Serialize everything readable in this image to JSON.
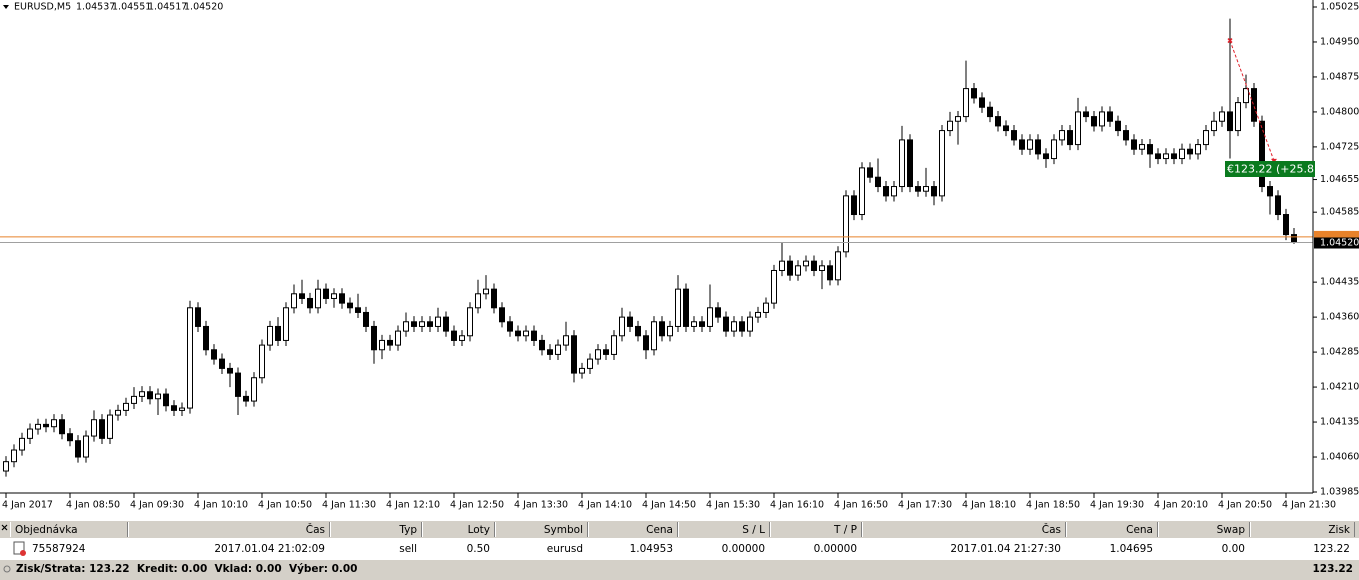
{
  "chart_data": {
    "type": "candlestick",
    "symbol": "EURUSD,M5",
    "last_bar_labels": [
      "1.04537",
      "1.04551",
      "1.04517",
      "1.04520"
    ],
    "ylim": [
      1.03985,
      1.0504
    ],
    "yticks": [
      1.05025,
      {
        "value": 1.0495,
        "label": "1.04950"
      },
      1.04875,
      {
        "value": 1.048,
        "label": "1.04800"
      },
      1.04725,
      1.04655,
      1.04585,
      1.04435,
      {
        "value": 1.0436,
        "label": "1.04360"
      },
      1.04285,
      {
        "value": 1.0421,
        "label": "1.04210"
      },
      1.04135,
      {
        "value": 1.0406,
        "label": "1.04060"
      },
      1.03985
    ],
    "categories": [
      "4 Jan 2017",
      null,
      null,
      null,
      null,
      null,
      null,
      null,
      "4 Jan 08:50",
      null,
      null,
      null,
      null,
      null,
      null,
      null,
      "4 Jan 09:30",
      null,
      null,
      null,
      null,
      null,
      null,
      null,
      "4 Jan 10:10",
      null,
      null,
      null,
      null,
      null,
      null,
      null,
      "4 Jan 10:50",
      null,
      null,
      null,
      null,
      null,
      null,
      null,
      "4 Jan 11:30",
      null,
      null,
      null,
      null,
      null,
      null,
      null,
      "4 Jan 12:10",
      null,
      null,
      null,
      null,
      null,
      null,
      null,
      "4 Jan 12:50",
      null,
      null,
      null,
      null,
      null,
      null,
      null,
      "4 Jan 13:30",
      null,
      null,
      null,
      null,
      null,
      null,
      null,
      "4 Jan 14:10",
      null,
      null,
      null,
      null,
      null,
      null,
      null,
      "4 Jan 14:50",
      null,
      null,
      null,
      null,
      null,
      null,
      null,
      "4 Jan 15:30",
      null,
      null,
      null,
      null,
      null,
      null,
      null,
      "4 Jan 16:10",
      null,
      null,
      null,
      null,
      null,
      null,
      null,
      "4 Jan 16:50",
      null,
      null,
      null,
      null,
      null,
      null,
      null,
      "4 Jan 17:30",
      null,
      null,
      null,
      null,
      null,
      null,
      null,
      "4 Jan 18:10",
      null,
      null,
      null,
      null,
      null,
      null,
      null,
      "4 Jan 18:50",
      null,
      null,
      null,
      null,
      null,
      null,
      null,
      "4 Jan 19:30",
      null,
      null,
      null,
      null,
      null,
      null,
      null,
      "4 Jan 20:10",
      null,
      null,
      null,
      null,
      null,
      null,
      null,
      "4 Jan 20:50",
      null,
      null,
      null,
      null,
      null,
      null,
      null,
      "4 Jan 21:30",
      null
    ],
    "candles": [
      [
        1.0403,
        1.04062,
        1.04018,
        1.0405
      ],
      [
        1.0405,
        1.04087,
        1.04038,
        1.04075
      ],
      [
        1.04075,
        1.04112,
        1.04063,
        1.041
      ],
      [
        1.041,
        1.04132,
        1.04088,
        1.0412
      ],
      [
        1.0412,
        1.04142,
        1.04108,
        1.0413
      ],
      [
        1.0413,
        1.04142,
        1.04113,
        1.04125
      ],
      [
        1.04125,
        1.04152,
        1.04113,
        1.0414
      ],
      [
        1.0414,
        1.04152,
        1.04098,
        1.0411
      ],
      [
        1.0411,
        1.04122,
        1.04083,
        1.04095
      ],
      [
        1.04095,
        1.04107,
        1.04048,
        1.0406
      ],
      [
        1.0406,
        1.04117,
        1.04048,
        1.04105
      ],
      [
        1.04105,
        1.0416,
        1.04093,
        1.0414
      ],
      [
        1.0414,
        1.04152,
        1.04088,
        1.041
      ],
      [
        1.041,
        1.04162,
        1.04088,
        1.0415
      ],
      [
        1.0415,
        1.04172,
        1.04138,
        1.0416
      ],
      [
        1.0416,
        1.04187,
        1.04148,
        1.04175
      ],
      [
        1.04175,
        1.0421,
        1.04163,
        1.0419
      ],
      [
        1.0419,
        1.04212,
        1.04178,
        1.042
      ],
      [
        1.042,
        1.04212,
        1.04173,
        1.04185
      ],
      [
        1.04185,
        1.04207,
        1.0415,
        1.04195
      ],
      [
        1.04195,
        1.04207,
        1.04158,
        1.0417
      ],
      [
        1.0417,
        1.04182,
        1.04148,
        1.0416
      ],
      [
        1.0416,
        1.04177,
        1.04148,
        1.04165
      ],
      [
        1.04165,
        1.04395,
        1.04153,
        1.0438
      ],
      [
        1.0438,
        1.04392,
        1.04328,
        1.0434
      ],
      [
        1.0434,
        1.04352,
        1.04278,
        1.0429
      ],
      [
        1.0429,
        1.04302,
        1.04258,
        1.0427
      ],
      [
        1.0427,
        1.04282,
        1.04238,
        1.0425
      ],
      [
        1.0425,
        1.04262,
        1.0421,
        1.0424
      ],
      [
        1.0424,
        1.04252,
        1.0415,
        1.0419
      ],
      [
        1.0419,
        1.04202,
        1.04168,
        1.0418
      ],
      [
        1.0418,
        1.04242,
        1.04168,
        1.0423
      ],
      [
        1.0423,
        1.04312,
        1.04218,
        1.043
      ],
      [
        1.043,
        1.04352,
        1.04288,
        1.0434
      ],
      [
        1.0434,
        1.0436,
        1.04298,
        1.0431
      ],
      [
        1.0431,
        1.04392,
        1.04298,
        1.0438
      ],
      [
        1.0438,
        1.0443,
        1.04368,
        1.0441
      ],
      [
        1.0441,
        1.0444,
        1.04388,
        1.044
      ],
      [
        1.044,
        1.04412,
        1.04368,
        1.0438
      ],
      [
        1.0438,
        1.0444,
        1.04368,
        1.0442
      ],
      [
        1.0442,
        1.04432,
        1.04388,
        1.044
      ],
      [
        1.044,
        1.04422,
        1.0438,
        1.0441
      ],
      [
        1.0441,
        1.04422,
        1.04378,
        1.0439
      ],
      [
        1.0439,
        1.04402,
        1.04368,
        1.0438
      ],
      [
        1.0438,
        1.0441,
        1.04358,
        1.0437
      ],
      [
        1.0437,
        1.04382,
        1.04328,
        1.0434
      ],
      [
        1.0434,
        1.04352,
        1.0426,
        1.0429
      ],
      [
        1.0429,
        1.04322,
        1.0427,
        1.0431
      ],
      [
        1.0431,
        1.04322,
        1.04288,
        1.043
      ],
      [
        1.043,
        1.04342,
        1.04288,
        1.0433
      ],
      [
        1.0433,
        1.0437,
        1.04318,
        1.0435
      ],
      [
        1.0435,
        1.04362,
        1.04328,
        1.0434
      ],
      [
        1.0434,
        1.04362,
        1.04328,
        1.0435
      ],
      [
        1.0435,
        1.04362,
        1.04328,
        1.0434
      ],
      [
        1.0434,
        1.0438,
        1.04328,
        1.0436
      ],
      [
        1.0436,
        1.04372,
        1.04318,
        1.0433
      ],
      [
        1.0433,
        1.04342,
        1.04298,
        1.0431
      ],
      [
        1.0431,
        1.04332,
        1.04298,
        1.0432
      ],
      [
        1.0432,
        1.04392,
        1.04308,
        1.0438
      ],
      [
        1.0438,
        1.0444,
        1.04368,
        1.0441
      ],
      [
        1.0441,
        1.0445,
        1.04398,
        1.0442
      ],
      [
        1.0442,
        1.04432,
        1.04368,
        1.0438
      ],
      [
        1.0438,
        1.04392,
        1.04338,
        1.0435
      ],
      [
        1.0435,
        1.04362,
        1.04318,
        1.0433
      ],
      [
        1.0433,
        1.04342,
        1.04308,
        1.0432
      ],
      [
        1.0432,
        1.04342,
        1.04308,
        1.0433
      ],
      [
        1.0433,
        1.04342,
        1.04298,
        1.0431
      ],
      [
        1.0431,
        1.04322,
        1.04278,
        1.0429
      ],
      [
        1.0429,
        1.04302,
        1.04268,
        1.0428
      ],
      [
        1.0428,
        1.04312,
        1.04268,
        1.043
      ],
      [
        1.043,
        1.0435,
        1.04288,
        1.0432
      ],
      [
        1.0432,
        1.04332,
        1.0422,
        1.0424
      ],
      [
        1.0424,
        1.04262,
        1.04228,
        1.0425
      ],
      [
        1.0425,
        1.04282,
        1.04238,
        1.0427
      ],
      [
        1.0427,
        1.04302,
        1.04258,
        1.0429
      ],
      [
        1.0429,
        1.04302,
        1.04268,
        1.0428
      ],
      [
        1.0428,
        1.04332,
        1.04268,
        1.0432
      ],
      [
        1.0432,
        1.0438,
        1.04308,
        1.0436
      ],
      [
        1.0436,
        1.04372,
        1.04328,
        1.0434
      ],
      [
        1.0434,
        1.04352,
        1.04308,
        1.0432
      ],
      [
        1.0432,
        1.04332,
        1.0427,
        1.0429
      ],
      [
        1.0429,
        1.04362,
        1.04278,
        1.0435
      ],
      [
        1.0435,
        1.04362,
        1.04308,
        1.0432
      ],
      [
        1.0432,
        1.04352,
        1.04308,
        1.0434
      ],
      [
        1.0434,
        1.0445,
        1.04328,
        1.0442
      ],
      [
        1.0442,
        1.04432,
        1.04328,
        1.0434
      ],
      [
        1.0434,
        1.04362,
        1.04328,
        1.0435
      ],
      [
        1.0435,
        1.04362,
        1.04328,
        1.0434
      ],
      [
        1.0434,
        1.0443,
        1.04328,
        1.0438
      ],
      [
        1.0438,
        1.04392,
        1.04348,
        1.0436
      ],
      [
        1.0436,
        1.04372,
        1.04318,
        1.0433
      ],
      [
        1.0433,
        1.04362,
        1.04318,
        1.0435
      ],
      [
        1.0435,
        1.04362,
        1.04318,
        1.0433
      ],
      [
        1.0433,
        1.04372,
        1.04318,
        1.0436
      ],
      [
        1.0436,
        1.04382,
        1.04348,
        1.0437
      ],
      [
        1.0437,
        1.04402,
        1.04358,
        1.0439
      ],
      [
        1.0439,
        1.04472,
        1.04378,
        1.0446
      ],
      [
        1.0446,
        1.0452,
        1.04448,
        1.0448
      ],
      [
        1.0448,
        1.04492,
        1.04438,
        1.0445
      ],
      [
        1.0445,
        1.04482,
        1.04438,
        1.0447
      ],
      [
        1.0447,
        1.04492,
        1.04458,
        1.0448
      ],
      [
        1.0448,
        1.04492,
        1.04448,
        1.0446
      ],
      [
        1.0446,
        1.04482,
        1.0442,
        1.0447
      ],
      [
        1.0447,
        1.04482,
        1.04428,
        1.0444
      ],
      [
        1.0444,
        1.04512,
        1.04428,
        1.045
      ],
      [
        1.045,
        1.04632,
        1.04488,
        1.0462
      ],
      [
        1.0462,
        1.04632,
        1.04568,
        1.0458
      ],
      [
        1.0458,
        1.04692,
        1.04568,
        1.0468
      ],
      [
        1.0468,
        1.04692,
        1.04648,
        1.0466
      ],
      [
        1.0466,
        1.047,
        1.04628,
        1.0464
      ],
      [
        1.0464,
        1.04652,
        1.04608,
        1.0462
      ],
      [
        1.0462,
        1.04652,
        1.04608,
        1.0464
      ],
      [
        1.0464,
        1.0477,
        1.04628,
        1.0474
      ],
      [
        1.0474,
        1.04752,
        1.04628,
        1.0464
      ],
      [
        1.0464,
        1.04652,
        1.04618,
        1.0463
      ],
      [
        1.0463,
        1.0468,
        1.04618,
        1.0464
      ],
      [
        1.0464,
        1.04652,
        1.046,
        1.0462
      ],
      [
        1.0462,
        1.04772,
        1.04608,
        1.0476
      ],
      [
        1.0476,
        1.048,
        1.04748,
        1.0478
      ],
      [
        1.0478,
        1.04802,
        1.0473,
        1.0479
      ],
      [
        1.0479,
        1.0491,
        1.04778,
        1.0485
      ],
      [
        1.0485,
        1.04862,
        1.04818,
        1.0483
      ],
      [
        1.0483,
        1.04842,
        1.04798,
        1.0481
      ],
      [
        1.0481,
        1.04822,
        1.04778,
        1.0479
      ],
      [
        1.0479,
        1.04802,
        1.04758,
        1.0477
      ],
      [
        1.0477,
        1.04782,
        1.04748,
        1.0476
      ],
      [
        1.0476,
        1.04772,
        1.04728,
        1.0474
      ],
      [
        1.0474,
        1.04752,
        1.04708,
        1.0472
      ],
      [
        1.0472,
        1.04752,
        1.04708,
        1.0474
      ],
      [
        1.0474,
        1.04752,
        1.04698,
        1.0471
      ],
      [
        1.0471,
        1.04722,
        1.0468,
        1.047
      ],
      [
        1.047,
        1.04752,
        1.04688,
        1.0474
      ],
      [
        1.0474,
        1.04772,
        1.04728,
        1.0476
      ],
      [
        1.0476,
        1.04772,
        1.04718,
        1.0473
      ],
      [
        1.0473,
        1.0483,
        1.04718,
        1.048
      ],
      [
        1.048,
        1.04812,
        1.04778,
        1.0479
      ],
      [
        1.0479,
        1.04802,
        1.04758,
        1.0477
      ],
      [
        1.0477,
        1.04812,
        1.04758,
        1.048
      ],
      [
        1.048,
        1.04812,
        1.04768,
        1.0478
      ],
      [
        1.0478,
        1.04792,
        1.04748,
        1.0476
      ],
      [
        1.0476,
        1.04772,
        1.04728,
        1.0474
      ],
      [
        1.0474,
        1.04752,
        1.04708,
        1.0472
      ],
      [
        1.0472,
        1.04742,
        1.04708,
        1.0473
      ],
      [
        1.0473,
        1.04742,
        1.0468,
        1.0471
      ],
      [
        1.0471,
        1.04722,
        1.04688,
        1.047
      ],
      [
        1.047,
        1.04722,
        1.04688,
        1.0471
      ],
      [
        1.0471,
        1.04722,
        1.04688,
        1.047
      ],
      [
        1.047,
        1.04732,
        1.04688,
        1.0472
      ],
      [
        1.0472,
        1.04732,
        1.04698,
        1.0471
      ],
      [
        1.0471,
        1.04742,
        1.04698,
        1.0473
      ],
      [
        1.0473,
        1.04772,
        1.04718,
        1.0476
      ],
      [
        1.0476,
        1.048,
        1.04748,
        1.0478
      ],
      [
        1.0478,
        1.04812,
        1.04768,
        1.048
      ],
      [
        1.048,
        1.05,
        1.047,
        1.0476
      ],
      [
        1.0476,
        1.04832,
        1.04748,
        1.0482
      ],
      [
        1.0482,
        1.0488,
        1.04808,
        1.0485
      ],
      [
        1.0485,
        1.04862,
        1.04768,
        1.0478
      ],
      [
        1.0478,
        1.04792,
        1.04628,
        1.0464
      ],
      [
        1.0464,
        1.04652,
        1.0458,
        1.0462
      ],
      [
        1.0462,
        1.04632,
        1.04568,
        1.0458
      ],
      [
        1.0458,
        1.04592,
        1.04525,
        1.04537
      ],
      [
        1.04537,
        1.04551,
        1.04517,
        1.0452
      ]
    ],
    "bull_color": "#ffffff",
    "bear_color": "#000000",
    "outline_color": "#000000",
    "price_lines": [
      {
        "value": 1.04532,
        "color": "#e8822a"
      },
      {
        "value": 1.0452,
        "color": "#a0a0a0"
      }
    ],
    "bid_label": "1.04520",
    "trade": {
      "open_price": 1.04953,
      "close_price": 1.04695,
      "color": "#e0202a",
      "label": "€123.22 (+25.8",
      "label_color": "#0a7a1e"
    }
  },
  "table": {
    "columns": [
      "Objednávka",
      "Čas",
      "Typ",
      "Loty",
      "Symbol",
      "Cena",
      "S / L",
      "T / P",
      "Čas",
      "Cena",
      "Swap",
      "Zisk"
    ],
    "rows": [
      [
        "75587924",
        "2017.01.04 21:02:09",
        "sell",
        "0.50",
        "eurusd",
        "1.04953",
        "0.00000",
        "0.00000",
        "2017.01.04 21:27:30",
        "1.04695",
        "0.00",
        "123.22"
      ]
    ],
    "summary": {
      "text": "Zisk/Strata: 123.22  Kredit: 0.00  Vklad: 0.00  Výber: 0.00",
      "total": "123.22"
    }
  }
}
